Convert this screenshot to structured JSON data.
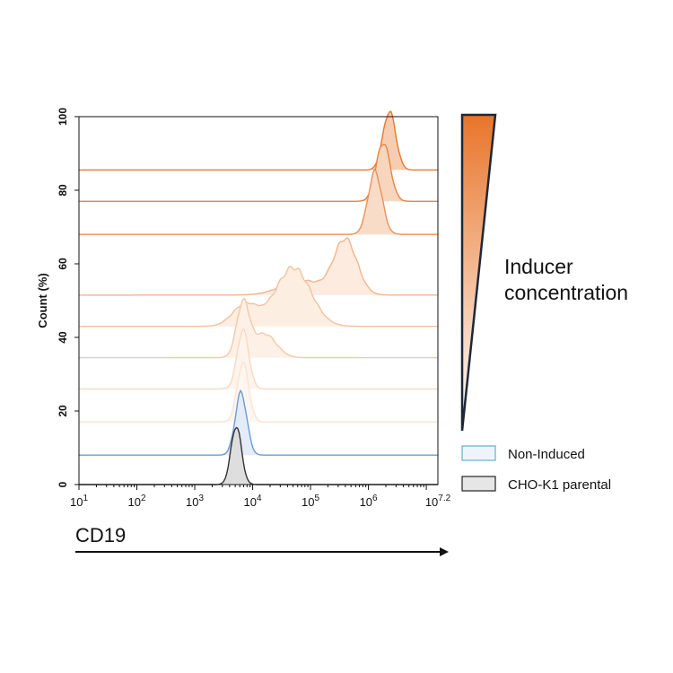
{
  "chart_data": {
    "type": "area",
    "subtype": "offset flow-cytometry histograms",
    "xlabel": "CD19",
    "ylabel": "Count (%)",
    "x_scale": "log",
    "xlim": [
      10,
      15848931.9
    ],
    "x_ticks": [
      {
        "value": 10,
        "base": "10",
        "exp": "1"
      },
      {
        "value": 100,
        "base": "10",
        "exp": "2"
      },
      {
        "value": 1000,
        "base": "10",
        "exp": "3"
      },
      {
        "value": 10000,
        "base": "10",
        "exp": "4"
      },
      {
        "value": 100000,
        "base": "10",
        "exp": "5"
      },
      {
        "value": 1000000,
        "base": "10",
        "exp": "6"
      },
      {
        "value": 15848931.9,
        "base": "10",
        "exp": "7.2"
      }
    ],
    "ylim": [
      0,
      100
    ],
    "y_ticks": [
      0,
      20,
      40,
      60,
      80,
      100
    ],
    "annotation": {
      "lines": [
        "Inducer",
        "concentration"
      ],
      "gradient_from": "#ffffff",
      "gradient_to": "#e8752a"
    },
    "legend": {
      "position": "bottom-right",
      "entries": [
        {
          "label": "Non-Induced",
          "color": "#6aa3d4",
          "fill": "#eef4fb"
        },
        {
          "label": "CHO-K1 parental",
          "color": "#333333",
          "fill": "#e6e6e6"
        }
      ]
    },
    "series": [
      {
        "key": "parental",
        "offset": 0,
        "color": "#333333",
        "fill": "#dedede",
        "peaks": [
          {
            "center": 5200,
            "height": 16,
            "sigma": 0.09
          }
        ]
      },
      {
        "key": "non_induced",
        "offset": 8,
        "color": "#6a9cd2",
        "fill": "#e3ecf8",
        "peaks": [
          {
            "center": 6300,
            "height": 17,
            "sigma": 0.1
          }
        ]
      },
      {
        "key": "dose_1",
        "offset": 17,
        "color": "#fbe3d3",
        "fill": "#fef6f0",
        "peaks": [
          {
            "center": 6800,
            "height": 16,
            "sigma": 0.1
          }
        ]
      },
      {
        "key": "dose_2",
        "offset": 26,
        "color": "#f9d8c2",
        "fill": "#fef4ec",
        "peaks": [
          {
            "center": 6800,
            "height": 16,
            "sigma": 0.1
          }
        ]
      },
      {
        "key": "dose_3",
        "offset": 34.5,
        "color": "#f6c8a8",
        "fill": "#fdf0e6",
        "peaks": [
          {
            "center": 6800,
            "height": 14.5,
            "sigma": 0.11
          },
          {
            "center": 16000,
            "height": 6.5,
            "sigma": 0.2
          }
        ]
      },
      {
        "key": "dose_4",
        "offset": 43,
        "color": "#f4c19f",
        "fill": "#fdeee2",
        "peaks": [
          {
            "center": 7500,
            "height": 6,
            "sigma": 0.22
          },
          {
            "center": 50000,
            "height": 16,
            "sigma": 0.3
          }
        ]
      },
      {
        "key": "dose_5",
        "offset": 51.5,
        "color": "#f2b58c",
        "fill": "#fcebde",
        "peaks": [
          {
            "center": 70000,
            "height": 4,
            "sigma": 0.35
          },
          {
            "center": 400000,
            "height": 15,
            "sigma": 0.2
          }
        ]
      },
      {
        "key": "dose_6",
        "offset": 68,
        "color": "#e9925a",
        "fill": "#f9dcc8",
        "peaks": [
          {
            "center": 1300000,
            "height": 17,
            "sigma": 0.12
          }
        ]
      },
      {
        "key": "dose_7",
        "offset": 77,
        "color": "#e8853f",
        "fill": "#f8d5bd",
        "peaks": [
          {
            "center": 1800000,
            "height": 16,
            "sigma": 0.12
          }
        ]
      },
      {
        "key": "dose_8",
        "offset": 85.5,
        "color": "#e8782c",
        "fill": "#f6cdb0",
        "peaks": [
          {
            "center": 2300000,
            "height": 16,
            "sigma": 0.11
          }
        ]
      }
    ]
  }
}
